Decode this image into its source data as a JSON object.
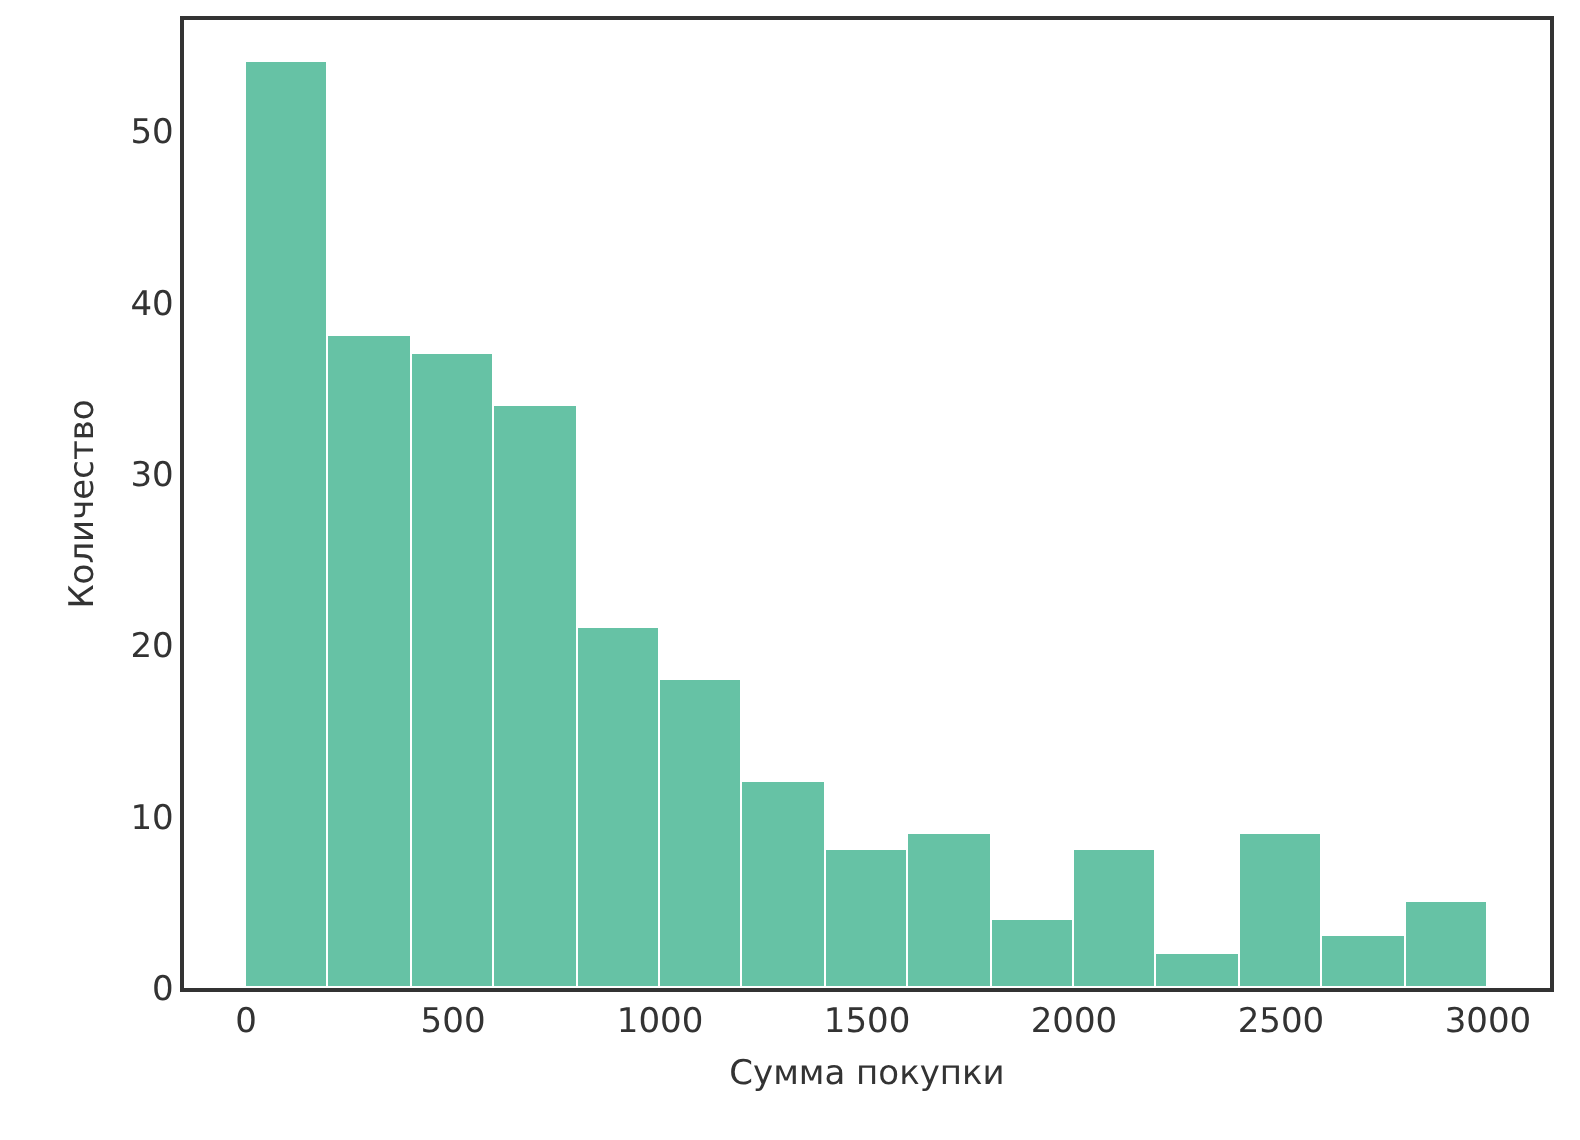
{
  "chart_data": {
    "type": "histogram",
    "xlabel": "Сумма покупки",
    "ylabel": "Количество",
    "bins": [
      0,
      200,
      400,
      600,
      800,
      1000,
      1200,
      1400,
      1600,
      1800,
      2000,
      2200,
      2400,
      2600,
      2800,
      3000
    ],
    "values": [
      54,
      38,
      37,
      34,
      21,
      18,
      12,
      8,
      9,
      4,
      8,
      2,
      9,
      3,
      5
    ],
    "color": "#66c2a5",
    "xlim": [
      -150,
      3150
    ],
    "xticks": [
      0,
      500,
      1000,
      1500,
      2000,
      2500,
      3000
    ],
    "ylim": [
      0,
      56.5
    ],
    "yticks": [
      0,
      10,
      20,
      30,
      40,
      50
    ],
    "grid": false
  }
}
